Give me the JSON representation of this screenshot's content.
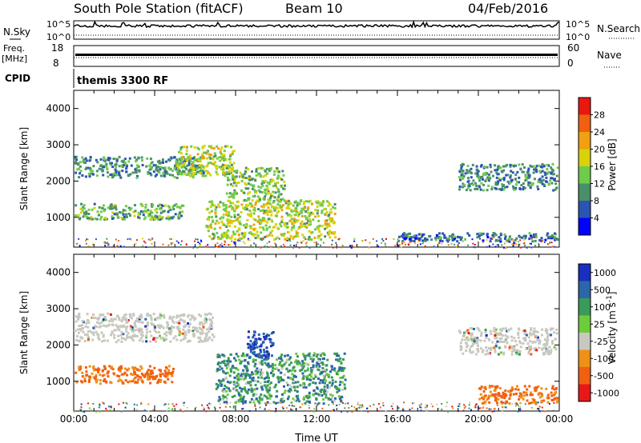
{
  "header": {
    "station": "South Pole Station (fitACF)",
    "beam": "Beam 10",
    "date": "04/Feb/2016"
  },
  "strip_nsky": {
    "left_label": "N.Sky",
    "right_label": "N.Search",
    "tick_top": "10^5",
    "tick_bottom": "10^0"
  },
  "strip_freq": {
    "left_label_1": "Freq.",
    "left_label_2": "[MHz]",
    "left_tick_top": "18",
    "left_tick_bottom": "8",
    "right_label": "Nave",
    "right_tick_top": "60",
    "right_tick_bottom": "0"
  },
  "cpid": {
    "label": "CPID",
    "value": "themis 3300 RF"
  },
  "x_axis": {
    "label": "Time UT",
    "ticks": [
      "00:00",
      "04:00",
      "08:00",
      "12:00",
      "16:00",
      "20:00",
      "00:00"
    ]
  },
  "colors": {
    "power": [
      "#0000ff",
      "#2b54b4",
      "#4a8f6a",
      "#6ecc4a",
      "#d8d20a",
      "#f0a010",
      "#f06010",
      "#e81810"
    ],
    "velocity": [
      "#e81818",
      "#f06010",
      "#f09018",
      "#c8c8c0",
      "#6ecc3a",
      "#3a9a5a",
      "#2a66aa",
      "#1830c0"
    ]
  },
  "chart_data": [
    {
      "type": "heatmap",
      "name": "power-panel",
      "ylabel": "Slant Range [km]",
      "xlabel": "",
      "ylim": [
        180,
        4500
      ],
      "yticks": [
        1000,
        2000,
        3000,
        4000
      ],
      "xlim_hours": [
        0,
        24
      ],
      "colorbar": {
        "label": "Power [dB]",
        "ticks": [
          "4",
          "8",
          "12",
          "16",
          "20",
          "24",
          "28"
        ],
        "range": [
          0,
          30
        ]
      },
      "bands": [
        {
          "t_start": 0.0,
          "t_end": 6.5,
          "range_start": 2050,
          "range_end": 2700,
          "level": 10
        },
        {
          "t_start": 5.0,
          "t_end": 8.0,
          "range_start": 2100,
          "range_end": 3000,
          "level": 16
        },
        {
          "t_start": 7.5,
          "t_end": 10.5,
          "range_start": 1400,
          "range_end": 2400,
          "level": 14
        },
        {
          "t_start": 0.0,
          "t_end": 5.5,
          "range_start": 900,
          "range_end": 1400,
          "level": 12
        },
        {
          "t_start": 6.5,
          "t_end": 13.0,
          "range_start": 350,
          "range_end": 1500,
          "level": 16
        },
        {
          "t_start": 19.0,
          "t_end": 24.0,
          "range_start": 1700,
          "range_end": 2500,
          "level": 9
        },
        {
          "t_start": 16.0,
          "t_end": 24.0,
          "range_start": 300,
          "range_end": 600,
          "level": 8
        }
      ]
    },
    {
      "type": "heatmap",
      "name": "velocity-panel",
      "ylabel": "Slant Range [km]",
      "xlabel": "Time UT",
      "ylim": [
        180,
        4500
      ],
      "yticks": [
        1000,
        2000,
        3000,
        4000
      ],
      "xlim_hours": [
        0,
        24
      ],
      "colorbar": {
        "label": "Velocity [m s-1]",
        "ticks": [
          "-1000",
          "-500",
          "-100",
          "-25",
          "25",
          "100",
          "500",
          "1000"
        ],
        "range": [
          -1200,
          1200
        ]
      },
      "bands": [
        {
          "t_start": 0.0,
          "t_end": 7.0,
          "range_start": 2050,
          "range_end": 2900,
          "level": 0
        },
        {
          "t_start": 19.0,
          "t_end": 24.0,
          "range_start": 1700,
          "range_end": 2500,
          "level": 0
        },
        {
          "t_start": 0.0,
          "t_end": 5.0,
          "range_start": 900,
          "range_end": 1450,
          "level": -400
        },
        {
          "t_start": 7.0,
          "t_end": 13.5,
          "range_start": 350,
          "range_end": 1800,
          "level": 200
        },
        {
          "t_start": 8.5,
          "t_end": 10.0,
          "range_start": 1600,
          "range_end": 2400,
          "level": 700
        },
        {
          "t_start": 20.0,
          "t_end": 24.0,
          "range_start": 350,
          "range_end": 900,
          "level": -400
        }
      ]
    }
  ]
}
